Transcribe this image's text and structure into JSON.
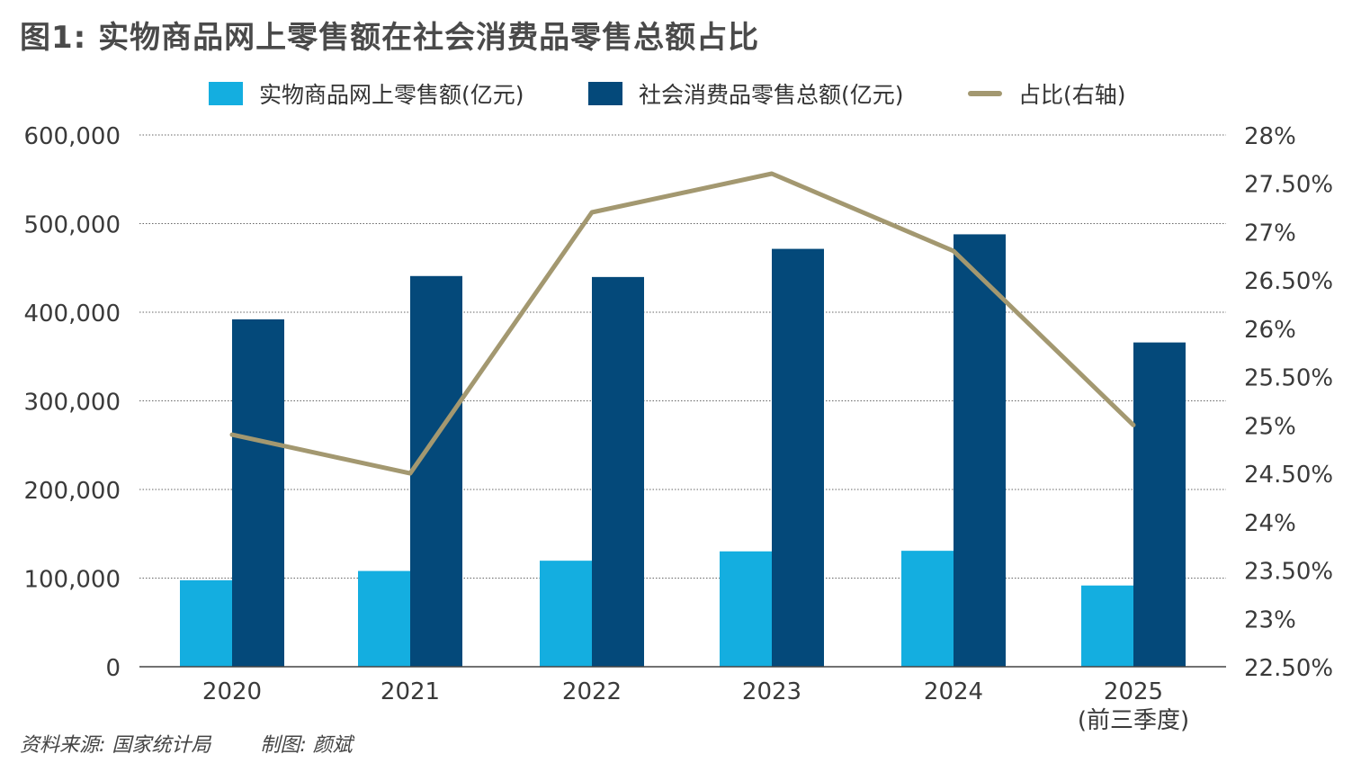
{
  "title": "图1: 实物商品网上零售额在社会消费品零售总额占比",
  "footer": {
    "source": "资料来源: 国家统计局",
    "author": "制图: 颜斌"
  },
  "colors": {
    "online": "#14aee0",
    "total": "#04497a",
    "ratio": "#a39870",
    "grid": "#666666",
    "axis_text": "#3a3a3a"
  },
  "chart_data": {
    "type": "bar",
    "categories": [
      "2020",
      "2021",
      "2022",
      "2023",
      "2024",
      "2025\n(前三季度)"
    ],
    "series": [
      {
        "name": "实物商品网上零售额(亿元)",
        "type": "bar",
        "axis": "left",
        "values": [
          97590,
          108042,
          119642,
          130174,
          130816,
          91648
        ]
      },
      {
        "name": "社会消费品零售总额(亿元)",
        "type": "bar",
        "axis": "left",
        "values": [
          391981,
          440823,
          439733,
          471495,
          487895,
          365877
        ]
      },
      {
        "name": "占比(右轴)",
        "type": "line",
        "axis": "right",
        "values": [
          24.9,
          24.5,
          27.2,
          27.6,
          26.8,
          25.0
        ]
      }
    ],
    "left_axis": {
      "ylim": [
        0,
        600000
      ],
      "ticks": [
        0,
        100000,
        200000,
        300000,
        400000,
        500000,
        600000
      ],
      "tick_labels": [
        "0",
        "100,000",
        "200,000",
        "300,000",
        "400,000",
        "500,000",
        "600,000"
      ]
    },
    "right_axis": {
      "ylim": [
        22.5,
        28
      ],
      "ticks": [
        22.5,
        23,
        23.5,
        24,
        24.5,
        25,
        25.5,
        26,
        26.5,
        27,
        27.5,
        28
      ],
      "tick_labels": [
        "22.50%",
        "23%",
        "23.50%",
        "24%",
        "24.50%",
        "25%",
        "25.50%",
        "26%",
        "26.50%",
        "27%",
        "27.50%",
        "28%"
      ]
    },
    "grid": true,
    "legend": "top"
  }
}
